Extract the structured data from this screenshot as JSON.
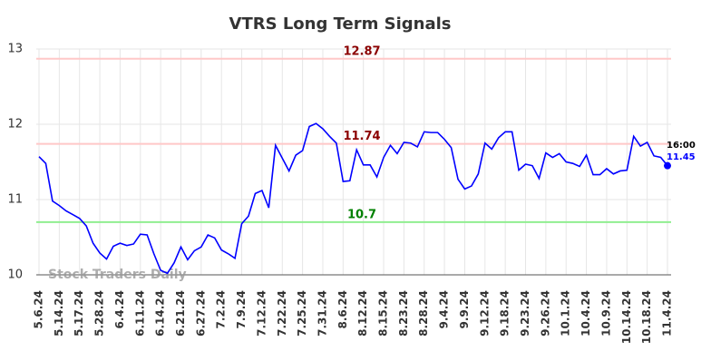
{
  "chart_data": {
    "type": "line",
    "title": "VTRS Long Term Signals",
    "categories": [
      "5.6.24",
      null,
      null,
      "5.14.24",
      null,
      null,
      "5.17.24",
      null,
      null,
      "5.28.24",
      null,
      null,
      "6.4.24",
      null,
      null,
      "6.11.24",
      null,
      null,
      "6.14.24",
      null,
      null,
      "6.21.24",
      null,
      null,
      "6.27.24",
      null,
      null,
      "7.2.24",
      null,
      null,
      "7.9.24",
      null,
      null,
      "7.12.24",
      null,
      null,
      "7.22.24",
      null,
      null,
      "7.25.24",
      null,
      null,
      "7.31.24",
      null,
      null,
      "8.6.24",
      null,
      null,
      "8.12.24",
      null,
      null,
      "8.15.24",
      null,
      null,
      "8.23.24",
      null,
      null,
      "8.28.24",
      null,
      null,
      "9.4.24",
      null,
      null,
      "9.9.24",
      null,
      null,
      "9.12.24",
      null,
      null,
      "9.18.24",
      null,
      null,
      "9.23.24",
      null,
      null,
      "9.26.24",
      null,
      null,
      "10.1.24",
      null,
      null,
      "10.4.24",
      null,
      null,
      "10.9.24",
      null,
      null,
      "10.14.24",
      null,
      null,
      "10.18.24",
      null,
      null,
      "11.4.24"
    ],
    "values": [
      11.57,
      11.48,
      10.98,
      10.92,
      10.85,
      10.8,
      10.75,
      10.65,
      10.42,
      10.29,
      10.21,
      10.38,
      10.42,
      10.39,
      10.41,
      10.54,
      10.53,
      10.28,
      10.06,
      10.02,
      10.16,
      10.37,
      10.2,
      10.32,
      10.37,
      10.53,
      10.49,
      10.33,
      10.28,
      10.22,
      10.68,
      10.78,
      11.08,
      11.12,
      10.89,
      11.72,
      11.55,
      11.38,
      11.59,
      11.65,
      11.97,
      12.01,
      11.94,
      11.84,
      11.75,
      11.24,
      11.25,
      11.66,
      11.46,
      11.46,
      11.3,
      11.56,
      11.72,
      11.61,
      11.76,
      11.75,
      11.7,
      11.9,
      11.89,
      11.89,
      11.8,
      11.69,
      11.27,
      11.14,
      11.18,
      11.34,
      11.75,
      11.67,
      11.82,
      11.9,
      11.9,
      11.39,
      11.47,
      11.45,
      11.28,
      11.62,
      11.56,
      11.61,
      11.5,
      11.48,
      11.44,
      11.59,
      11.33,
      11.33,
      11.41,
      11.34,
      11.38,
      11.39,
      11.84,
      11.71,
      11.76,
      11.58,
      11.56,
      11.45
    ],
    "color": "#0000ff",
    "ylim": [
      10,
      13
    ],
    "yticks": [
      10,
      11,
      12,
      13
    ],
    "grid": true,
    "hlines": [
      {
        "value": 12.87,
        "color": "#ffc8c8",
        "label_color": "#8b0000"
      },
      {
        "value": 11.74,
        "color": "#ffc8c8",
        "label_color": "#8b0000"
      },
      {
        "value": 10.7,
        "color": "#90ee90",
        "label_color": "#008000"
      }
    ],
    "last_time": "16:00",
    "watermark": "Stock Traders Daily"
  }
}
